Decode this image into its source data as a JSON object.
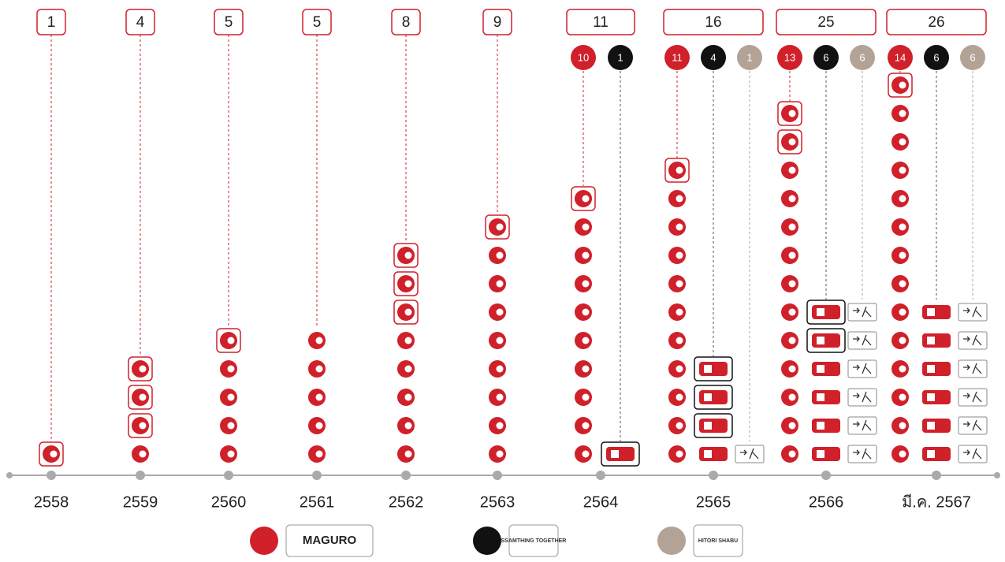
{
  "chart_data": {
    "type": "pictogram",
    "categories": [
      "2558",
      "2559",
      "2560",
      "2561",
      "2562",
      "2563",
      "2564",
      "2565",
      "2566",
      "มี.ค. 2567"
    ],
    "totals": [
      1,
      4,
      5,
      5,
      8,
      9,
      11,
      16,
      25,
      26
    ],
    "series": [
      {
        "name": "MAGURO",
        "color": "#d0202a",
        "values": [
          1,
          4,
          5,
          5,
          8,
          9,
          10,
          11,
          13,
          14
        ]
      },
      {
        "name": "SSAMTHING TOGETHER",
        "color": "#111111",
        "values": [
          0,
          0,
          0,
          0,
          0,
          0,
          1,
          4,
          6,
          6
        ]
      },
      {
        "name": "HITORI SHABU",
        "color": "#b3a397",
        "values": [
          0,
          0,
          0,
          0,
          0,
          0,
          0,
          1,
          6,
          6
        ]
      }
    ]
  }
}
